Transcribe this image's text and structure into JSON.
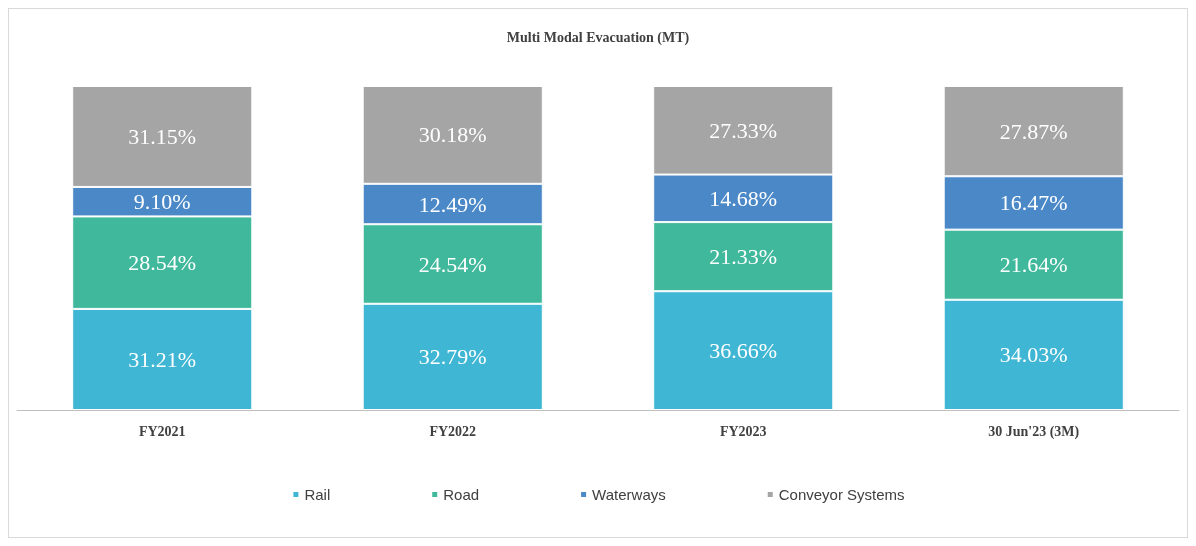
{
  "chart_data": {
    "type": "bar",
    "title": "Multi Modal Evacuation (MT)",
    "categories": [
      "FY2021",
      "FY2022",
      "FY2023",
      "30 Jun'23 (3M)"
    ],
    "stacked": true,
    "ylim": [
      0,
      100
    ],
    "tick_labels": "x",
    "legend": "bottom",
    "series": [
      {
        "name": "Rail",
        "color": "#3fb7d4",
        "values": [
          31.21,
          32.79,
          36.66,
          34.03
        ],
        "value_labels": [
          "31.21%",
          "32.79%",
          "36.66%",
          "34.03%"
        ]
      },
      {
        "name": "Road",
        "color": "#3fb89b",
        "values": [
          28.54,
          24.54,
          21.33,
          21.64
        ],
        "value_labels": [
          "28.54%",
          "24.54%",
          "21.33%",
          "21.64%"
        ]
      },
      {
        "name": "Waterways",
        "color": "#4a88c7",
        "values": [
          9.1,
          12.49,
          14.68,
          16.47
        ],
        "value_labels": [
          "9.10%",
          "12.49%",
          "14.68%",
          "16.47%"
        ]
      },
      {
        "name": "Conveyor Systems",
        "color": "#a5a5a5",
        "values": [
          31.15,
          30.18,
          27.33,
          27.87
        ],
        "value_labels": [
          "31.15%",
          "30.18%",
          "27.33%",
          "27.87%"
        ]
      }
    ]
  }
}
